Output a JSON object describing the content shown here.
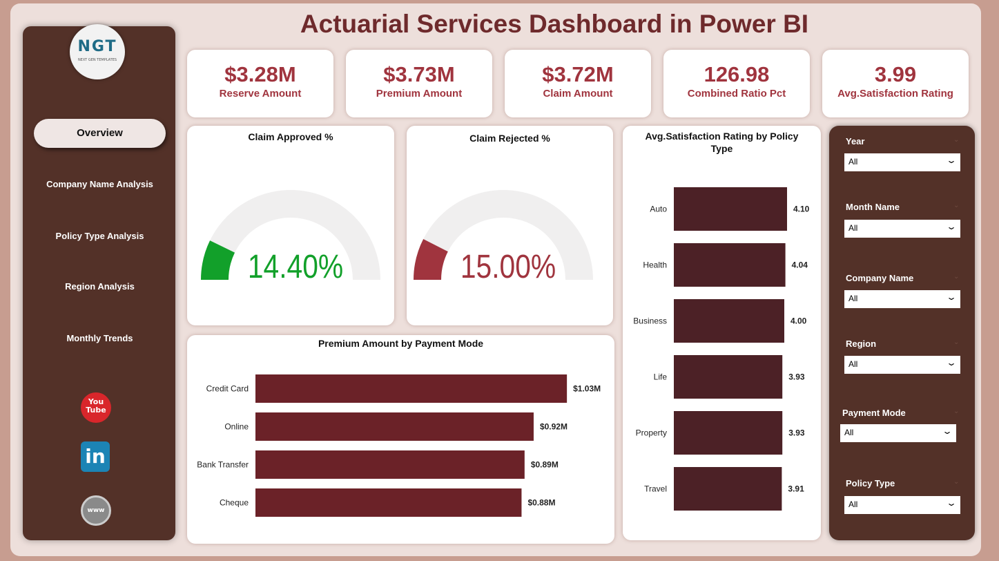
{
  "title": "Actuarial Services Dashboard in Power BI",
  "logo": {
    "text": "NGT",
    "subtitle": "NEXT GEN TEMPLATES"
  },
  "nav": [
    {
      "label": "Overview",
      "active": true
    },
    {
      "label": "Company Name Analysis"
    },
    {
      "label": "Policy Type Analysis"
    },
    {
      "label": "Region Analysis"
    },
    {
      "label": "Monthly Trends"
    }
  ],
  "social": [
    {
      "icon": "youtube-icon",
      "label": "You Tube",
      "color": "#d9262b"
    },
    {
      "icon": "linkedin-icon",
      "label": "in",
      "color": "#1c84b5"
    },
    {
      "icon": "globe-icon",
      "label": "www",
      "color": "#8a8a8a"
    }
  ],
  "kpis": [
    {
      "value": "$3.28M",
      "label": "Reserve Amount"
    },
    {
      "value": "$3.73M",
      "label": "Premium Amount"
    },
    {
      "value": "$3.72M",
      "label": "Claim Amount"
    },
    {
      "value": "126.98",
      "label": "Combined Ratio Pct"
    },
    {
      "value": "3.99",
      "label": "Avg.Satisfaction Rating"
    }
  ],
  "gauges": [
    {
      "title": "Claim Approved %",
      "value": 14.4,
      "label": "14.40%",
      "color": "#12a02a"
    },
    {
      "title": "Claim Rejected %",
      "value": 15.0,
      "label": "15.00%",
      "color": "#a0343e"
    }
  ],
  "chart_data": [
    {
      "type": "bar",
      "title": "Premium Amount by Payment Mode",
      "orientation": "horizontal",
      "categories": [
        "Credit Card",
        "Online",
        "Bank Transfer",
        "Cheque"
      ],
      "values": [
        1.03,
        0.92,
        0.89,
        0.88
      ],
      "labels": [
        "$1.03M",
        "$0.92M",
        "$0.89M",
        "$0.88M"
      ],
      "unit": "$M",
      "color": "#6b2228"
    },
    {
      "type": "bar",
      "title": "Avg.Satisfaction Rating by Policy Type",
      "orientation": "horizontal",
      "categories": [
        "Auto",
        "Health",
        "Business",
        "Life",
        "Property",
        "Travel"
      ],
      "values": [
        4.1,
        4.04,
        4.0,
        3.93,
        3.93,
        3.91
      ],
      "labels": [
        "4.10",
        "4.04",
        "4.00",
        "3.93",
        "3.93",
        "3.91"
      ],
      "color": "#4c2126"
    }
  ],
  "filters": [
    {
      "label": "Year",
      "value": "All"
    },
    {
      "label": "Month Name",
      "value": "All"
    },
    {
      "label": "Company Name",
      "value": "All"
    },
    {
      "label": "Region",
      "value": "All"
    },
    {
      "label": "Payment Mode",
      "value": "All"
    },
    {
      "label": "Policy Type",
      "value": "All"
    }
  ]
}
